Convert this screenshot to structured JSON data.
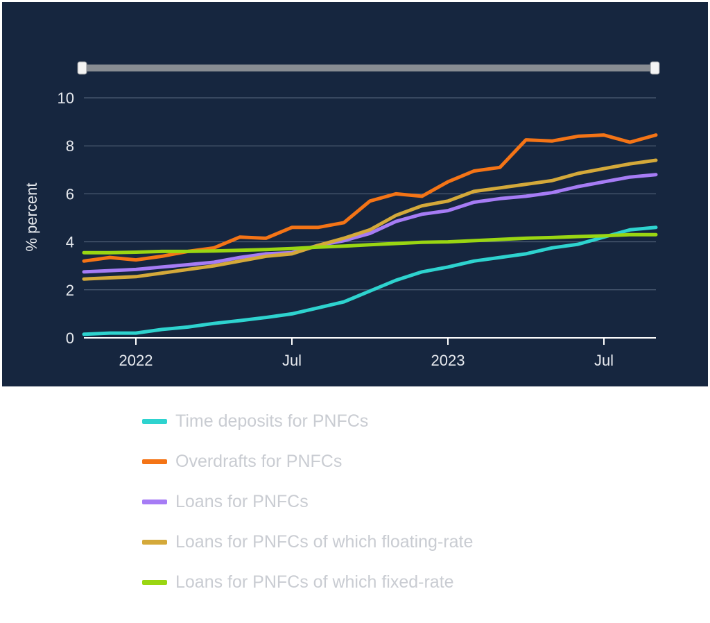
{
  "chart_data": {
    "type": "line",
    "title": "",
    "xlabel": "",
    "ylabel": "% percent",
    "ylim": [
      0,
      10
    ],
    "yticks": [
      0,
      2,
      4,
      6,
      8,
      10
    ],
    "x": [
      "2021-11",
      "2021-12",
      "2022-01",
      "2022-02",
      "2022-03",
      "2022-04",
      "2022-05",
      "2022-06",
      "2022-07",
      "2022-08",
      "2022-09",
      "2022-10",
      "2022-11",
      "2022-12",
      "2023-01",
      "2023-02",
      "2023-03",
      "2023-04",
      "2023-05",
      "2023-06",
      "2023-07",
      "2023-08",
      "2023-09"
    ],
    "xticks": [
      {
        "date": "2022-01",
        "label": "2022"
      },
      {
        "date": "2022-07",
        "label": "Jul"
      },
      {
        "date": "2023-01",
        "label": "2023"
      },
      {
        "date": "2023-07",
        "label": "Jul"
      }
    ],
    "grid": true,
    "legend_position": "bottom",
    "series": [
      {
        "name": "Time deposits for PNFCs",
        "color": "#2ed3cf",
        "values": [
          0.15,
          0.2,
          0.2,
          0.35,
          0.45,
          0.6,
          0.72,
          0.85,
          1.0,
          1.25,
          1.5,
          1.95,
          2.4,
          2.75,
          2.95,
          3.2,
          3.35,
          3.5,
          3.75,
          3.9,
          4.2,
          4.5,
          4.6
        ]
      },
      {
        "name": "Overdrafts for PNFCs",
        "color": "#f47416",
        "values": [
          3.2,
          3.35,
          3.25,
          3.4,
          3.6,
          3.75,
          4.2,
          4.15,
          4.6,
          4.6,
          4.8,
          5.7,
          6.0,
          5.9,
          6.5,
          6.95,
          7.1,
          8.25,
          8.2,
          8.4,
          8.45,
          8.15,
          8.45
        ]
      },
      {
        "name": "Loans for PNFCs",
        "color": "#a67cf5",
        "values": [
          2.75,
          2.8,
          2.85,
          2.95,
          3.05,
          3.15,
          3.35,
          3.5,
          3.55,
          3.85,
          4.05,
          4.35,
          4.85,
          5.15,
          5.3,
          5.65,
          5.8,
          5.9,
          6.05,
          6.3,
          6.5,
          6.7,
          6.8
        ]
      },
      {
        "name": "Loans for PNFCs of which floating-rate",
        "color": "#d4a93a",
        "values": [
          2.45,
          2.5,
          2.55,
          2.7,
          2.85,
          3.0,
          3.2,
          3.4,
          3.5,
          3.85,
          4.15,
          4.5,
          5.1,
          5.5,
          5.7,
          6.1,
          6.25,
          6.4,
          6.55,
          6.85,
          7.05,
          7.25,
          7.4
        ]
      },
      {
        "name": "Loans for PNFCs of which fixed-rate",
        "color": "#9ad612",
        "values": [
          3.55,
          3.55,
          3.57,
          3.6,
          3.6,
          3.62,
          3.65,
          3.68,
          3.72,
          3.78,
          3.82,
          3.88,
          3.93,
          3.98,
          4.0,
          4.05,
          4.1,
          4.15,
          4.18,
          4.22,
          4.25,
          4.3,
          4.3
        ]
      }
    ]
  }
}
